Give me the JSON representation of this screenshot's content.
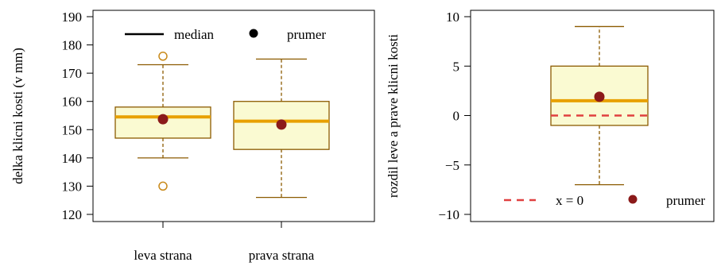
{
  "colors": {
    "box_fill": "#fafad2",
    "box_stroke": "#8b5a00",
    "whisker": "#8b5a00",
    "median": "#e8a000",
    "mean": "#8b1a1a",
    "outlier": "#c98a1a",
    "zero_line": "#e04040",
    "axis": "#000000"
  },
  "chart_data": [
    {
      "type": "box",
      "title": "",
      "xlabel": "",
      "ylabel": "delka klicni kosti (v mm)",
      "ylim": [
        117,
        193
      ],
      "yticks": [
        120,
        130,
        140,
        150,
        160,
        170,
        180,
        190
      ],
      "categories": [
        "leva strana",
        "prava strana"
      ],
      "boxes": [
        {
          "lower_whisker": 140,
          "q1": 147,
          "median": 154.5,
          "q3": 158,
          "upper_whisker": 173,
          "mean": 153.7,
          "outliers": [
            176,
            130
          ]
        },
        {
          "lower_whisker": 126,
          "q1": 143,
          "median": 153,
          "q3": 160,
          "upper_whisker": 175,
          "mean": 151.8,
          "outliers": []
        }
      ],
      "legend": {
        "position": "top",
        "entries": [
          {
            "label": "median",
            "symbol": "line"
          },
          {
            "label": "prumer",
            "symbol": "point"
          }
        ]
      },
      "grid": false
    },
    {
      "type": "box",
      "title": "",
      "xlabel": "",
      "ylabel": "rozdil leve a prave klicni kosti",
      "ylim": [
        -11,
        11
      ],
      "yticks": [
        -10,
        -5,
        0,
        5,
        10
      ],
      "ytick_labels": [
        "−10",
        "−5",
        "0",
        "5",
        "10"
      ],
      "boxes": [
        {
          "lower_whisker": -7,
          "q1": -1,
          "median": 1.5,
          "q3": 5,
          "upper_whisker": 9,
          "mean": 1.9,
          "outliers": []
        }
      ],
      "reference_line": {
        "y": 0,
        "style": "dashed",
        "label": "x = 0"
      },
      "legend": {
        "position": "bottom",
        "entries": [
          {
            "label": "x = 0",
            "symbol": "dashed-line"
          },
          {
            "label": "prumer",
            "symbol": "point"
          }
        ]
      },
      "grid": false
    }
  ]
}
